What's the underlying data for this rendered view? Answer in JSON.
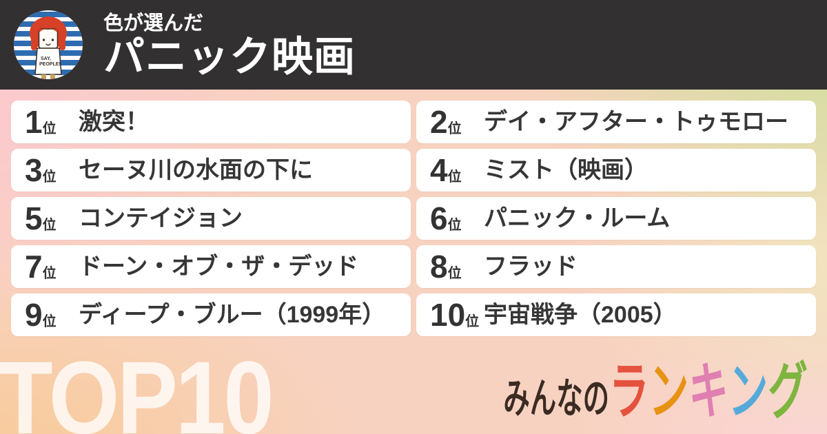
{
  "header": {
    "subtitle": "色が選んだ",
    "title": "パニック映画",
    "avatar": {
      "shirt_line1": "SAY,",
      "shirt_line2": "PEOPLE!"
    }
  },
  "ranking": {
    "rank_suffix": "位",
    "items": [
      {
        "rank": "1",
        "title": "激突！"
      },
      {
        "rank": "2",
        "title": "デイ・アフター・トゥモロー"
      },
      {
        "rank": "3",
        "title": "セーヌ川の水面の下に"
      },
      {
        "rank": "4",
        "title": "ミスト（映画）"
      },
      {
        "rank": "5",
        "title": "コンテイジョン"
      },
      {
        "rank": "6",
        "title": "パニック・ルーム"
      },
      {
        "rank": "7",
        "title": "ドーン・オブ・ザ・デッド"
      },
      {
        "rank": "8",
        "title": "フラッド"
      },
      {
        "rank": "9",
        "title": "ディープ・ブルー（1999年）"
      },
      {
        "rank": "10",
        "title": "宇宙戦争（2005）"
      }
    ]
  },
  "footer": {
    "top_label": "TOP10",
    "logo_prefix": "みんなの",
    "logo_chars": [
      {
        "ch": "ラ",
        "color": "#e4523d"
      },
      {
        "ch": "ン",
        "color": "#e69312"
      },
      {
        "ch": "キ",
        "color": "#e080b2"
      },
      {
        "ch": "ン",
        "color": "#56aada"
      },
      {
        "ch": "グ",
        "color": "#7eb53e"
      }
    ]
  },
  "colors": {
    "header_bg": "#323030",
    "header_text": "#ffffff",
    "card_bg": "#ffffff",
    "card_text": "#363636",
    "top_label": "rgba(255,255,255,0.78)",
    "logo_prefix": "#3a2b23",
    "crown": "#f2cf1c",
    "bg_pink": "#fcc8cf",
    "bg_green": "#cde29a",
    "bg_cream": "#f0e6be",
    "bg_orange": "#f8cb98",
    "bg_pink_light": "#fbd6d9",
    "avatar_stripe_blue": "#2e6cb2",
    "avatar_hair_red": "#d64127"
  }
}
